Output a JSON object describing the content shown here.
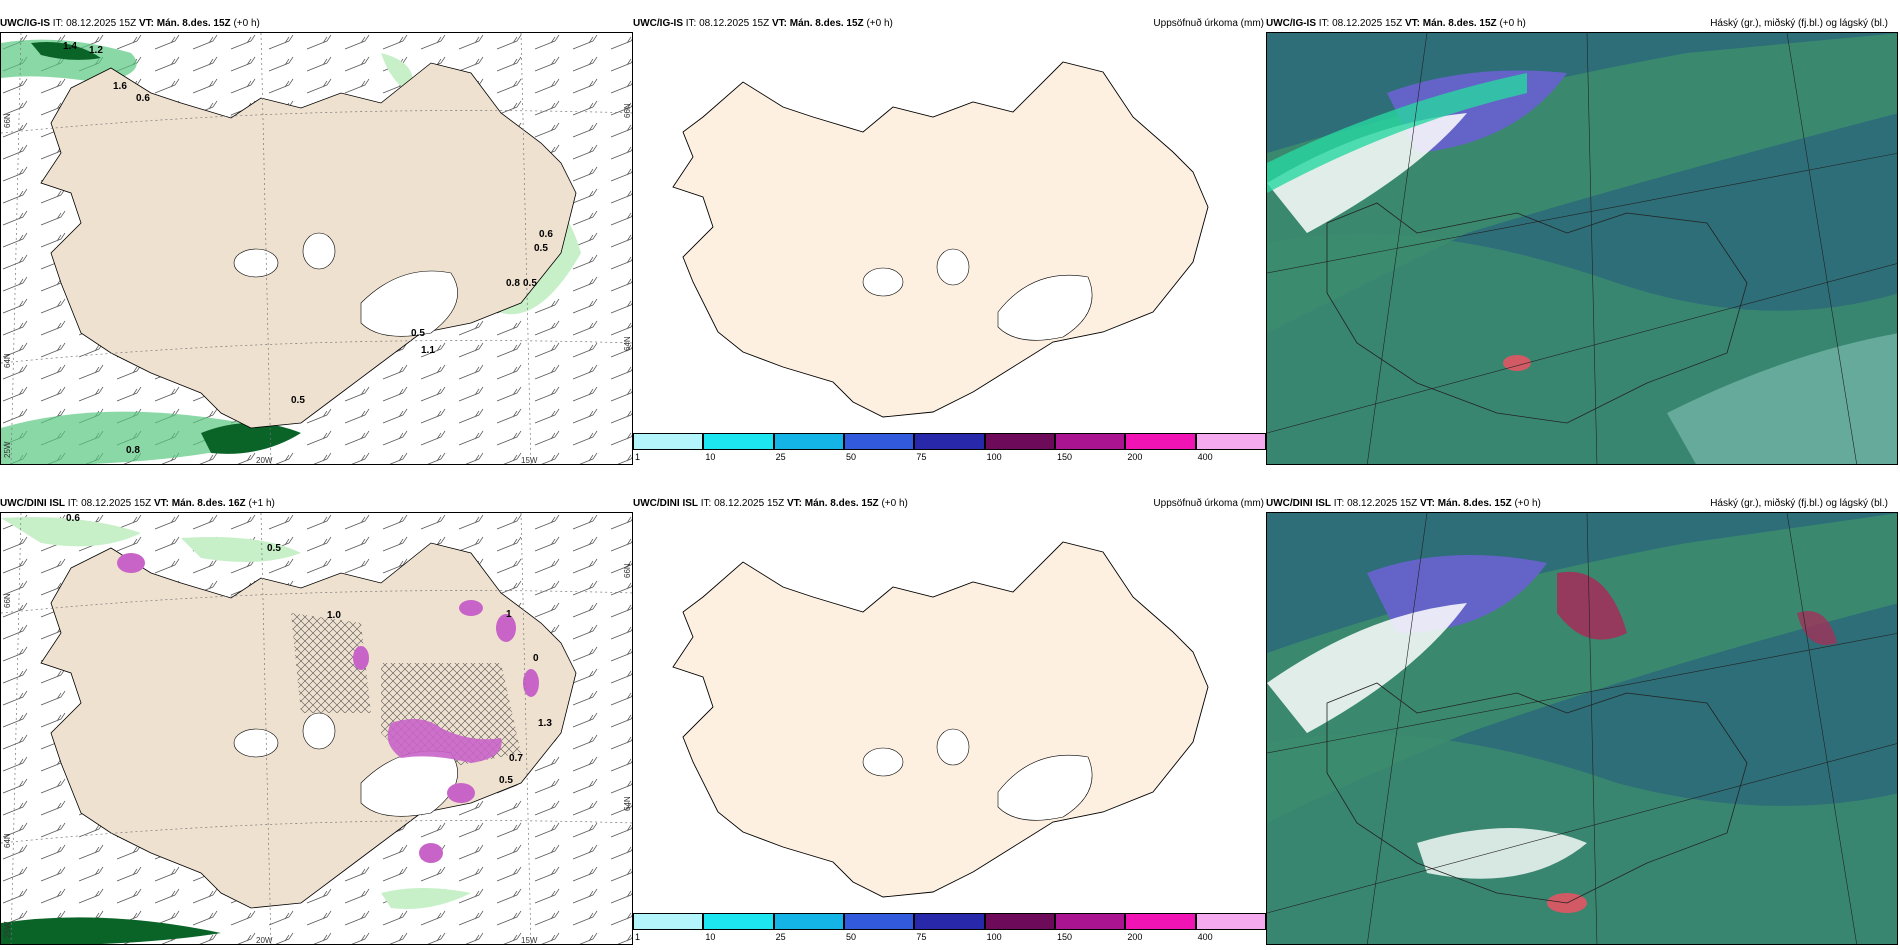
{
  "panels": [
    {
      "id": "top-left",
      "model": "UWC/IG-IS",
      "it_label": "IT:",
      "it_value": "08.12.2025 15Z",
      "vt_label": "VT:",
      "vt_value": "Mán. 8.des. 15Z",
      "offset": "(+0 h)",
      "right_title": "",
      "lat_labels": [
        "66N",
        "64N",
        "25W"
      ],
      "lon_labels": [
        "20W",
        "15W"
      ],
      "right_lat_labels": [
        "66N",
        "64N"
      ],
      "values": [
        "1.4",
        "1.2",
        "1.6",
        "0.6",
        "0.6",
        "0.5",
        "0.8",
        "0.5",
        "0.5",
        "1.1",
        "0.5",
        "0.8"
      ]
    },
    {
      "id": "top-middle",
      "model": "UWC/IG-IS",
      "it_label": "IT:",
      "it_value": "08.12.2025 15Z",
      "vt_label": "VT:",
      "vt_value": "Mán. 8.des. 15Z",
      "offset": "(+0 h)",
      "right_title": "Uppsöfnuð úrkoma (mm)"
    },
    {
      "id": "top-right",
      "model": "UWC/IG-IS",
      "it_label": "IT:",
      "it_value": "08.12.2025 15Z",
      "vt_label": "VT:",
      "vt_value": "Mán. 8.des. 15Z",
      "offset": "(+0 h)",
      "right_title": "Háský (gr.), miðský (fj.bl.) og lágský (bl.)"
    },
    {
      "id": "bottom-left",
      "model": "UWC/DINI ISL",
      "it_label": "IT:",
      "it_value": "08.12.2025 15Z",
      "vt_label": "VT:",
      "vt_value": "Mán. 8.des. 16Z",
      "offset": "(+1 h)",
      "right_title": "",
      "lat_labels": [
        "66N",
        "64N",
        "25W"
      ],
      "lon_labels": [
        "20W",
        "15W"
      ],
      "right_lat_labels": [
        "66N",
        "64N"
      ],
      "values": [
        "0.6",
        "0.5",
        "1.0",
        "1",
        "0",
        "1.3",
        "0.7",
        "0.5"
      ]
    },
    {
      "id": "bottom-middle",
      "model": "UWC/DINI ISL",
      "it_label": "IT:",
      "it_value": "08.12.2025 15Z",
      "vt_label": "VT:",
      "vt_value": "Mán. 8.des. 15Z",
      "offset": "(+0 h)",
      "right_title": "Uppsöfnuð úrkoma (mm)"
    },
    {
      "id": "bottom-right",
      "model": "UWC/DINI ISL",
      "it_label": "IT:",
      "it_value": "08.12.2025 15Z",
      "vt_label": "VT:",
      "vt_value": "Mán. 8.des. 15Z",
      "offset": "(+0 h)",
      "right_title": "Háský (gr.), miðský (fj.bl.) og lágský (bl.)"
    }
  ],
  "colorbar": {
    "ticks": [
      "1",
      "10",
      "25",
      "50",
      "75",
      "100",
      "150",
      "200",
      "400"
    ],
    "colors": [
      "#b3f5fa",
      "#1ee6f0",
      "#14b4e6",
      "#325adc",
      "#2828aa",
      "#6e0a5a",
      "#aa1491",
      "#f014b4",
      "#f5aaf0"
    ]
  },
  "colors": {
    "land": "#efe1cf",
    "land_plain": "#fdf0e1",
    "sea": "#ffffff",
    "precip_light": "#c8f0c8",
    "precip_mid": "#5ac882",
    "precip_dark": "#0a6428",
    "snow_magenta": "#c864c8",
    "cloud_bg": "#2d6e78",
    "cloud_low": "#3c8c6e",
    "cloud_high": "#28d7a0",
    "cloud_mid": "#6464c8"
  }
}
